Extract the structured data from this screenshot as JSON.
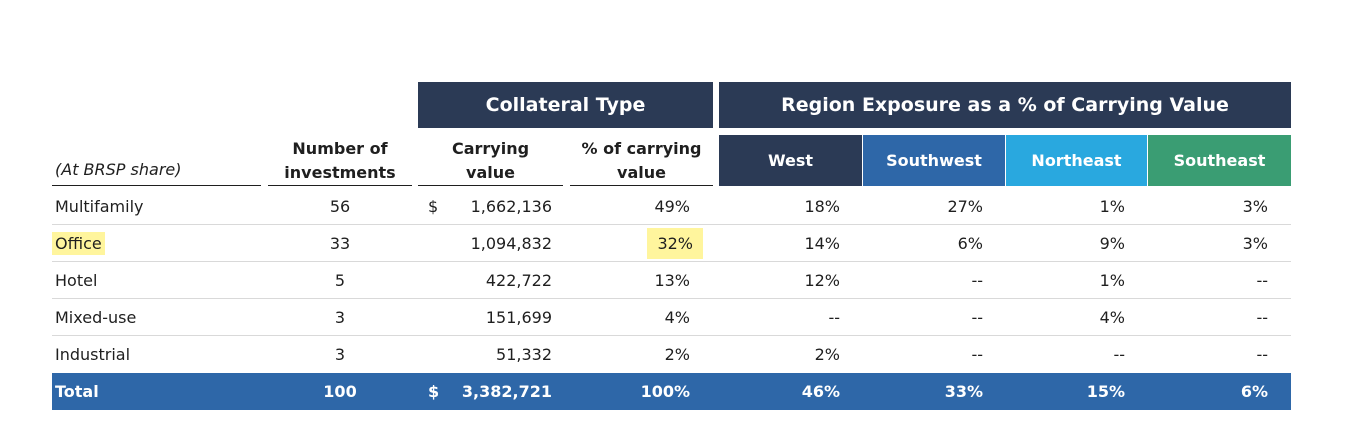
{
  "headers": {
    "collateral_type": "Collateral Type",
    "region_exposure": "Region Exposure as a % of Carrying Value",
    "share_note": "(At BRSP share)",
    "num_investments": [
      "Number of",
      "investments"
    ],
    "carrying_value": [
      "Carrying",
      "value"
    ],
    "pct_carrying": [
      "% of carrying",
      "value"
    ],
    "regions": [
      "West",
      "Southwest",
      "Northeast",
      "Southeast"
    ]
  },
  "colors": {
    "navy": "#2b3a55",
    "west": "#2b3a55",
    "southwest": "#2e67a8",
    "northeast": "#29a8df",
    "southeast": "#3a9d73",
    "total_bar": "#2e67a8",
    "highlight": "#fff59d"
  },
  "rows": [
    {
      "type": "Multifamily",
      "count": "56",
      "dollar": "$",
      "value": "1,662,136",
      "pct": "49%",
      "west": "18%",
      "southwest": "27%",
      "northeast": "1%",
      "southeast": "3%"
    },
    {
      "type": "Office",
      "count": "33",
      "dollar": "",
      "value": "1,094,832",
      "pct": "32%",
      "west": "14%",
      "southwest": "6%",
      "northeast": "9%",
      "southeast": "3%"
    },
    {
      "type": "Hotel",
      "count": "5",
      "dollar": "",
      "value": "422,722",
      "pct": "13%",
      "west": "12%",
      "southwest": "--",
      "northeast": "1%",
      "southeast": "--"
    },
    {
      "type": "Mixed-use",
      "count": "3",
      "dollar": "",
      "value": "151,699",
      "pct": "4%",
      "west": "--",
      "southwest": "--",
      "northeast": "4%",
      "southeast": "--"
    },
    {
      "type": "Industrial",
      "count": "3",
      "dollar": "",
      "value": "51,332",
      "pct": "2%",
      "west": "2%",
      "southwest": "--",
      "northeast": "--",
      "southeast": "--"
    }
  ],
  "total": {
    "type": "Total",
    "count": "100",
    "dollar": "$",
    "value": "3,382,721",
    "pct": "100%",
    "west": "46%",
    "southwest": "33%",
    "northeast": "15%",
    "southeast": "6%"
  },
  "highlighted": [
    "Office",
    "32%"
  ]
}
